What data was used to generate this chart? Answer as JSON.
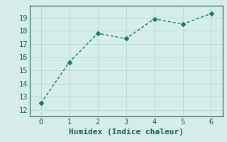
{
  "x": [
    0,
    1,
    2,
    3,
    4,
    5,
    6
  ],
  "y": [
    12.5,
    15.6,
    17.8,
    17.4,
    18.9,
    18.5,
    19.3
  ],
  "line_color": "#1a7a6e",
  "marker": "D",
  "marker_size": 3,
  "xlabel": "Humidex (Indice chaleur)",
  "xlim": [
    -0.4,
    6.4
  ],
  "ylim": [
    11.5,
    19.9
  ],
  "yticks": [
    12,
    13,
    14,
    15,
    16,
    17,
    18,
    19
  ],
  "xticks": [
    0,
    1,
    2,
    3,
    4,
    5,
    6
  ],
  "bg_color": "#d4ede8",
  "grid_color": "#b8ddd8",
  "font_color": "#1a5c54",
  "xlabel_fontsize": 8,
  "tick_fontsize": 7.5,
  "linewidth": 1.0
}
